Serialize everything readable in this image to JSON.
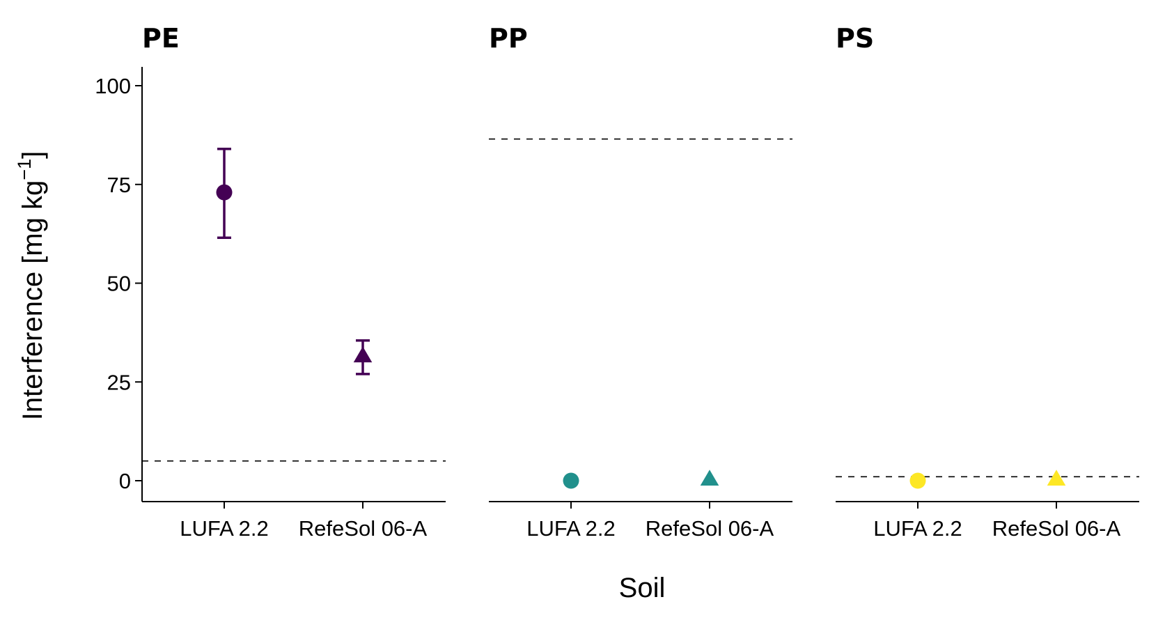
{
  "chart_data": {
    "type": "scatter",
    "ylabel": {
      "main": "Interference [mg kg",
      "sup": "−1",
      "close": "]"
    },
    "xlabel": "Soil",
    "ylim": [
      -5,
      105
    ],
    "yticks": [
      0,
      25,
      50,
      75,
      100
    ],
    "categories": [
      "LUFA 2.2",
      "RefeSol 06-A"
    ],
    "marker_shapes": [
      "circle",
      "triangle"
    ],
    "panels": [
      {
        "title": "PE",
        "color": "#440154",
        "values": [
          73,
          31.5
        ],
        "error_low": [
          61.5,
          27
        ],
        "error_high": [
          84,
          35.5
        ],
        "threshold": 5
      },
      {
        "title": "PP",
        "color": "#21908C",
        "values": [
          0,
          0.3
        ],
        "error_low": [
          null,
          null
        ],
        "error_high": [
          null,
          null
        ],
        "threshold": 86.5
      },
      {
        "title": "PS",
        "color": "#FDE725",
        "values": [
          0,
          0.3
        ],
        "error_low": [
          null,
          null
        ],
        "error_high": [
          null,
          null
        ],
        "threshold": 1
      }
    ]
  }
}
